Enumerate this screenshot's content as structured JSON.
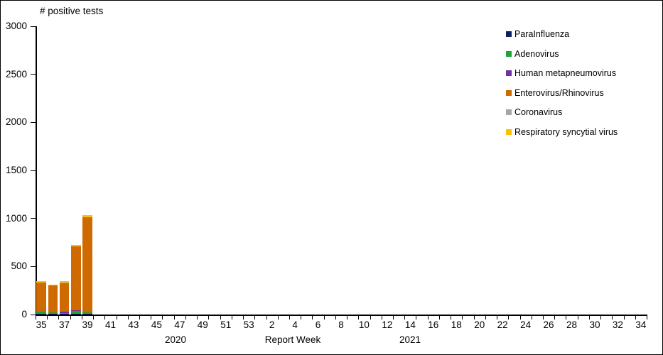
{
  "frame": {
    "border_color": "#000000",
    "background": "#FFFFFF"
  },
  "chart_data": {
    "type": "bar",
    "stacked": true,
    "title": "# positive tests",
    "xlabel": "Report Week",
    "ylabel": "# positive tests",
    "ylim": [
      0,
      3000
    ],
    "yticks": [
      0,
      500,
      1000,
      1500,
      2000,
      2500,
      3000
    ],
    "x_tick_labels": [
      "35",
      "37",
      "39",
      "41",
      "43",
      "45",
      "47",
      "49",
      "51",
      "53",
      "2",
      "4",
      "6",
      "8",
      "10",
      "12",
      "14",
      "16",
      "18",
      "20",
      "22",
      "24",
      "26",
      "28",
      "30",
      "32",
      "34"
    ],
    "weeks_per_tick_label": 2,
    "total_week_slots": 53,
    "year_labels": [
      "2020",
      "2021"
    ],
    "data_weeks": [
      "35",
      "36",
      "37",
      "38",
      "39"
    ],
    "data_year": "2020",
    "series": [
      {
        "name": "ParaInfluenza",
        "color": "#10205F",
        "values": [
          5,
          8,
          8,
          5,
          5
        ]
      },
      {
        "name": "Adenovirus",
        "color": "#1EA43C",
        "values": [
          20,
          12,
          8,
          30,
          12
        ]
      },
      {
        "name": "Human metapneumovirus",
        "color": "#7030A0",
        "values": [
          0,
          0,
          8,
          5,
          0
        ]
      },
      {
        "name": "Enterovirus/Rhinovirus",
        "color": "#CE6A00",
        "values": [
          300,
          280,
          300,
          665,
          995
        ]
      },
      {
        "name": "Coronavirus",
        "color": "#A6A6A6",
        "values": [
          0,
          0,
          8,
          0,
          0
        ]
      },
      {
        "name": "Respiratory syncytial virus",
        "color": "#FFC000",
        "values": [
          15,
          5,
          15,
          15,
          22
        ]
      }
    ],
    "bar_totals": [
      340,
      305,
      347,
      720,
      1034
    ],
    "legend_position": "right",
    "grid": false
  }
}
